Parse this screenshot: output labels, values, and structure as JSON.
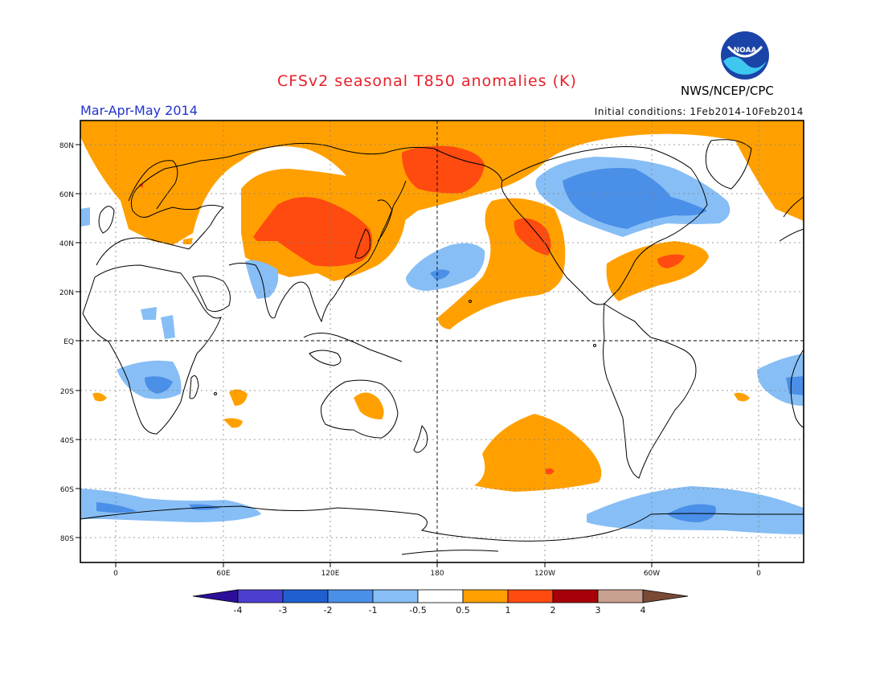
{
  "header": {
    "title": "CFSv2 seasonal T850 anomalies (K)",
    "agency": "NWS/NCEP/CPC",
    "logo_text": "NOAA",
    "season": "Mar-Apr-May 2014",
    "init_conditions": "Initial conditions: 1Feb2014-10Feb2014"
  },
  "map": {
    "lat_labels": [
      "80N",
      "60N",
      "40N",
      "20N",
      "EQ",
      "20S",
      "40S",
      "60S",
      "80S"
    ],
    "lon_labels": [
      "0",
      "60E",
      "120E",
      "180",
      "120W",
      "60W",
      "0"
    ]
  },
  "colorbar": {
    "labels": [
      "-4",
      "-3",
      "-2",
      "-1",
      "-0.5",
      "0.5",
      "1",
      "2",
      "3",
      "4"
    ],
    "colors": [
      "#2b0f9a",
      "#4b3fd0",
      "#1f5fd0",
      "#4a8fe8",
      "#87bef5",
      "#ffffff",
      "#ffa000",
      "#ff4a10",
      "#a80008",
      "#c8a090",
      "#7a4a35"
    ]
  }
}
